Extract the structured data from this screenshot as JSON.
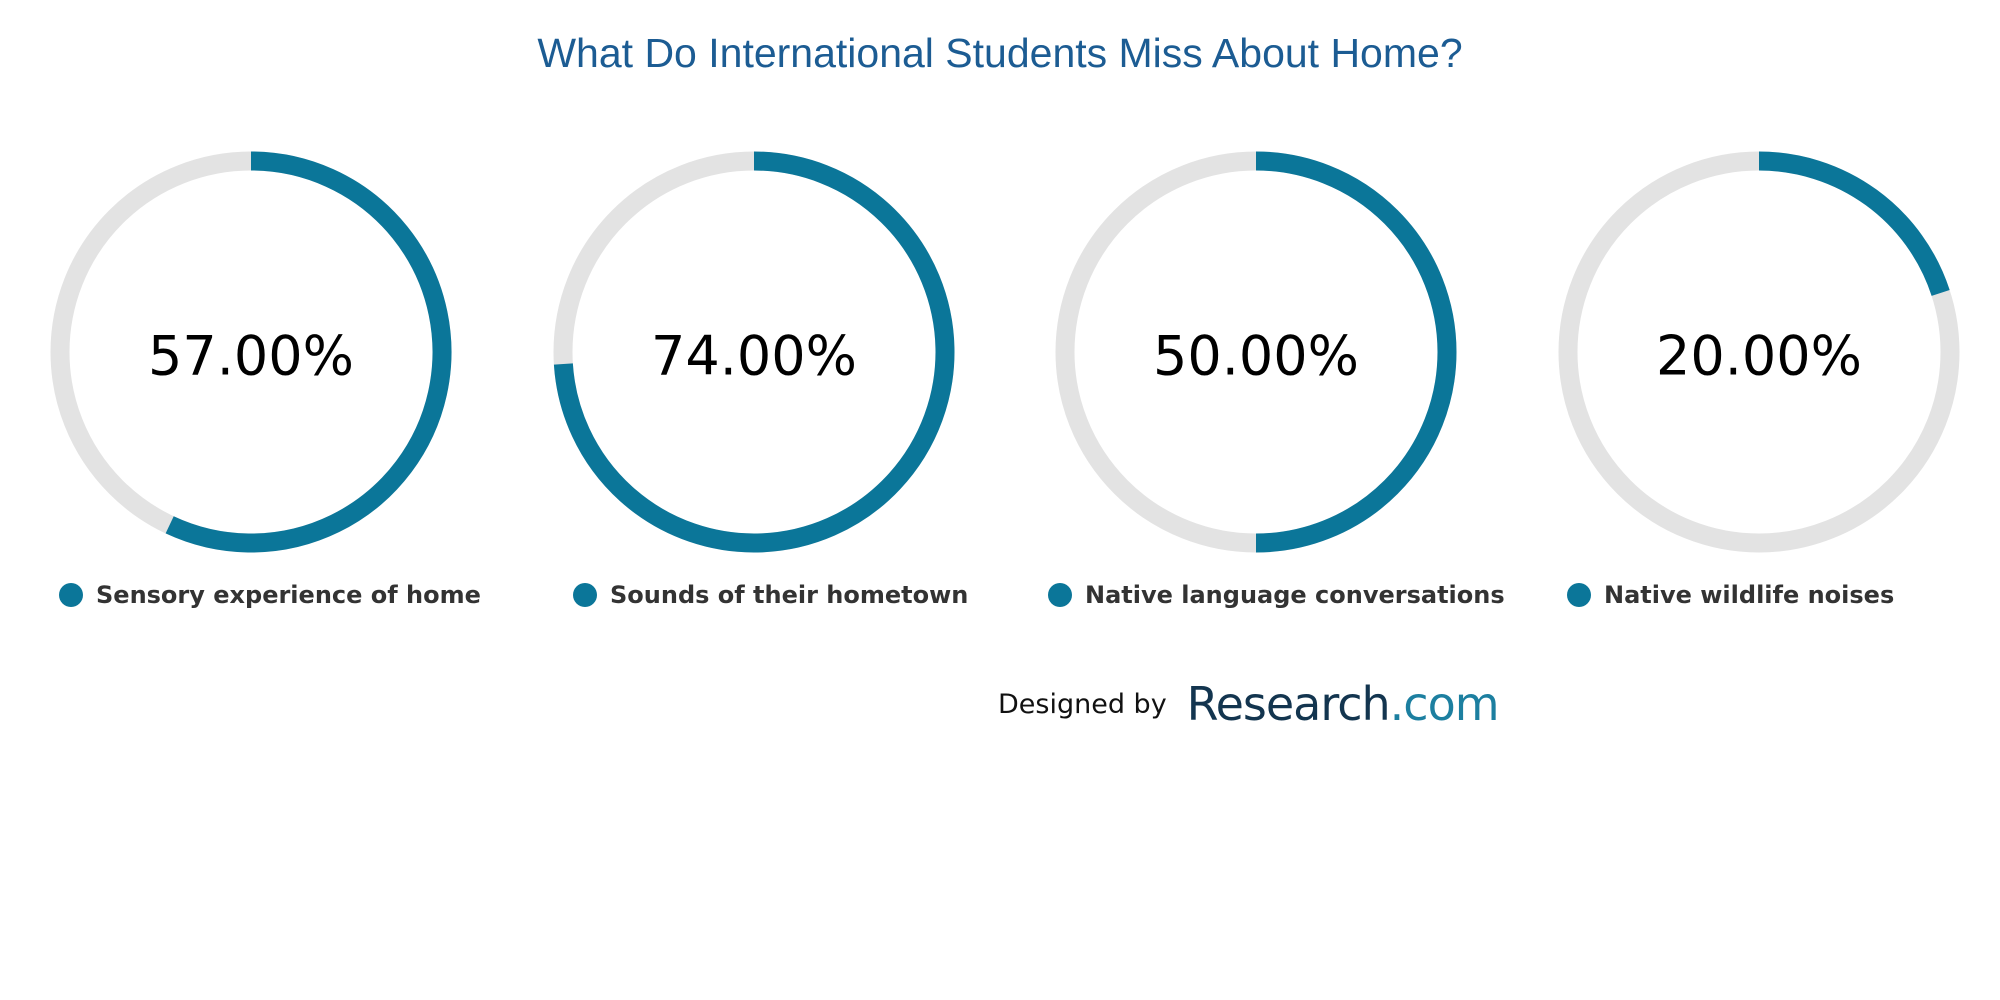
{
  "chart_data": {
    "type": "donut",
    "title": "What Do International Students Miss About Home?",
    "categories": [
      "Sensory experience of home",
      "Sounds of their hometown",
      "Native language conversations",
      "Native wildlife noises"
    ],
    "values": [
      57.0,
      74.0,
      50.0,
      20.0
    ],
    "value_labels": [
      "57.00%",
      "74.00%",
      "50.00%",
      "20.00%"
    ],
    "unit": "%",
    "max": 100,
    "legend_placement": "below each donut"
  },
  "credit": {
    "prefix": "Designed by",
    "brand_main": "Research",
    "brand_suffix": ".com"
  },
  "colors": {
    "title": "#1c5c93",
    "fill": "#0b7699",
    "track": "#e3e3e3",
    "legend_text": "#333333",
    "brand_dark": "#13354f",
    "brand_accent": "#1c7fa0"
  }
}
